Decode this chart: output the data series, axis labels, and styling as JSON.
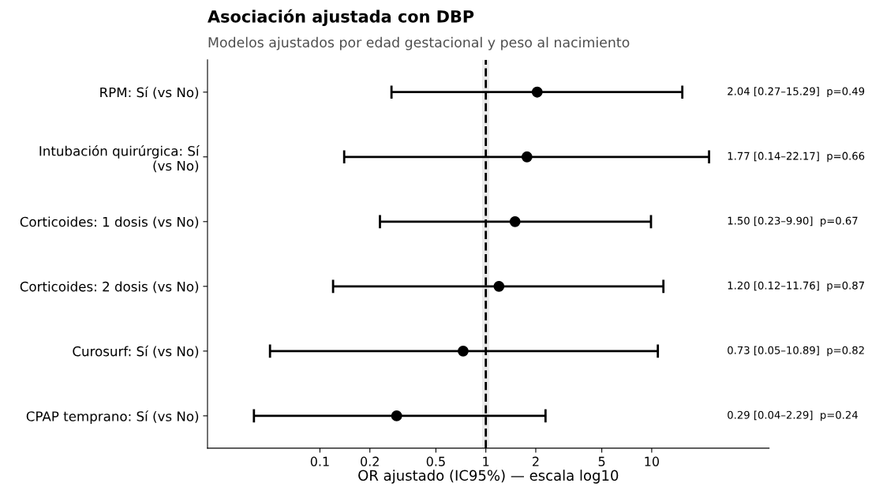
{
  "chart_data": {
    "type": "scatter",
    "orientation": "horizontal",
    "title": "Asociación ajustada con DBP",
    "subtitle": "Modelos ajustados por edad gestacional y peso al nacimiento",
    "xlabel": "OR ajustado (IC95%) — escala log10",
    "categories": [
      "RPM: Sí (vs No)",
      "Intubación quirúrgica: Sí\n(vs No)",
      "Corticoides: 1 dosis (vs No)",
      "Corticoides: 2 dosis (vs No)",
      "Curosurf: Sí (vs No)",
      "CPAP temprano: Sí (vs No)"
    ],
    "values": [
      2.04,
      1.77,
      1.5,
      1.2,
      0.73,
      0.29
    ],
    "errors": [
      [
        0.27,
        15.29
      ],
      [
        0.14,
        22.17
      ],
      [
        0.23,
        9.9
      ],
      [
        0.12,
        11.76
      ],
      [
        0.05,
        10.89
      ],
      [
        0.04,
        2.29
      ]
    ],
    "annotations": [
      "2.04 [0.27–15.29]  p=0.49",
      "1.77 [0.14–22.17]  p=0.66",
      "1.50 [0.23–9.90]  p=0.67",
      "1.20 [0.12–11.76]  p=0.87",
      "0.73 [0.05–10.89]  p=0.82",
      "0.29 [0.04–2.29]  p=0.24"
    ],
    "color": "#000000",
    "marker": "circle",
    "log": "x",
    "xlim": [
      0.021,
      51
    ],
    "xticks": [
      0.1,
      0.2,
      0.5,
      1,
      2,
      5,
      10
    ],
    "ref_lines": [
      {
        "axis": "x",
        "value": 1,
        "color": "#000000",
        "line_style": "dashed"
      }
    ],
    "bands": [
      {
        "axis": "x",
        "from": 0.95,
        "to": 1.05,
        "color": "#ebebeb"
      }
    ],
    "grid": false,
    "legend": false
  }
}
